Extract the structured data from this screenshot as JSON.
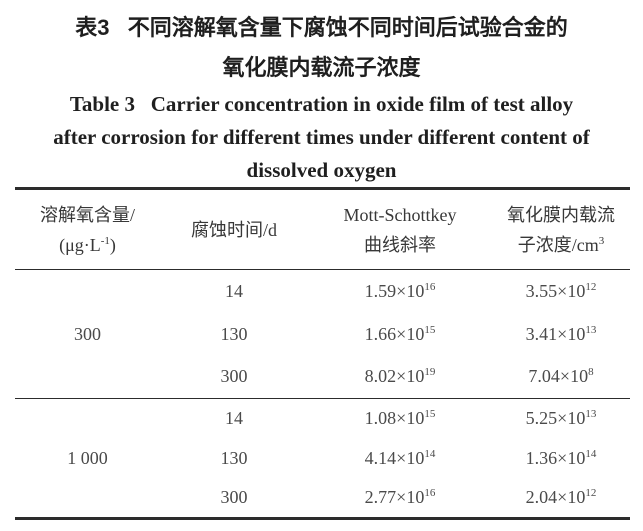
{
  "caption": {
    "zh_line1": "表3   不同溶解氧含量下腐蚀不同时间后试验合金的",
    "zh_line2": "氧化膜内载流子浓度",
    "en_line1": "Table 3   Carrier concentration in oxide film of test alloy",
    "en_line2": "after corrosion for different times under different content of",
    "en_line3": "dissolved oxygen"
  },
  "table": {
    "header": {
      "oxygen_line1": "溶解氧含量/",
      "oxygen_unit_pre": "(μg·L",
      "oxygen_unit_sup": "-1",
      "oxygen_unit_post": ")",
      "time": "腐蚀时间/d",
      "slope_line1": "Mott-Schottkey",
      "slope_line2": "曲线斜率",
      "conc_line1": "氧化膜内载流",
      "conc_line2_pre": "子浓度/cm",
      "conc_line2_sup": "3"
    },
    "groups": [
      {
        "oxygen": "300",
        "rows": [
          {
            "time": "14",
            "slope_base": "1.59×10",
            "slope_exp": "16",
            "conc_base": "3.55×10",
            "conc_exp": "12"
          },
          {
            "time": "130",
            "slope_base": "1.66×10",
            "slope_exp": "15",
            "conc_base": "3.41×10",
            "conc_exp": "13"
          },
          {
            "time": "300",
            "slope_base": "8.02×10",
            "slope_exp": "19",
            "conc_base": "7.04×10",
            "conc_exp": "8"
          }
        ]
      },
      {
        "oxygen": "1 000",
        "rows": [
          {
            "time": "14",
            "slope_base": "1.08×10",
            "slope_exp": "15",
            "conc_base": "5.25×10",
            "conc_exp": "13"
          },
          {
            "time": "130",
            "slope_base": "4.14×10",
            "slope_exp": "14",
            "conc_base": "1.36×10",
            "conc_exp": "14"
          },
          {
            "time": "300",
            "slope_base": "2.77×10",
            "slope_exp": "16",
            "conc_base": "2.04×10",
            "conc_exp": "12"
          }
        ]
      }
    ]
  }
}
